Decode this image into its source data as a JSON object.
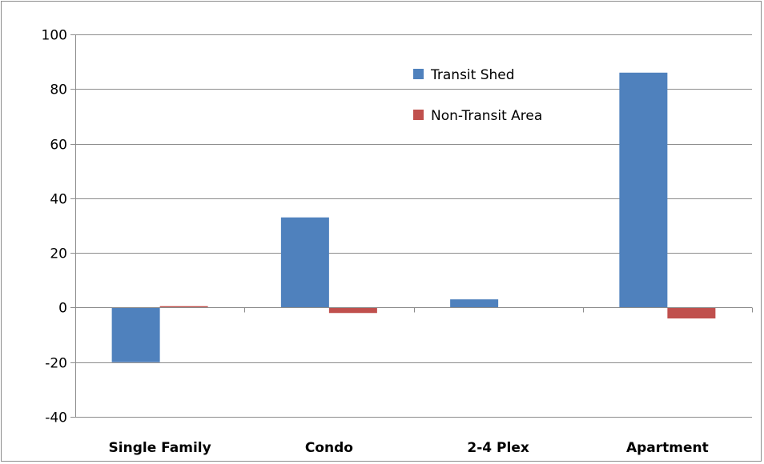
{
  "chart_data": {
    "type": "bar",
    "categories": [
      "Single Family",
      "Condo",
      "2-4 Plex",
      "Apartment"
    ],
    "series": [
      {
        "name": "Transit Shed",
        "values": [
          -20,
          33,
          3,
          86
        ],
        "color": "#4f81bd"
      },
      {
        "name": "Non-Transit Area",
        "values": [
          0.5,
          -2,
          0,
          -4
        ],
        "color": "#c0504d"
      }
    ],
    "ylim": [
      -40,
      100
    ],
    "yticks": [
      -40,
      -20,
      0,
      20,
      40,
      60,
      80,
      100
    ],
    "ytick_labels": [
      "-40",
      "-20",
      "0",
      "20",
      "40",
      "60",
      "80",
      "100"
    ],
    "grid": "horizontal",
    "legend_position": "top-right (inside plot)"
  }
}
